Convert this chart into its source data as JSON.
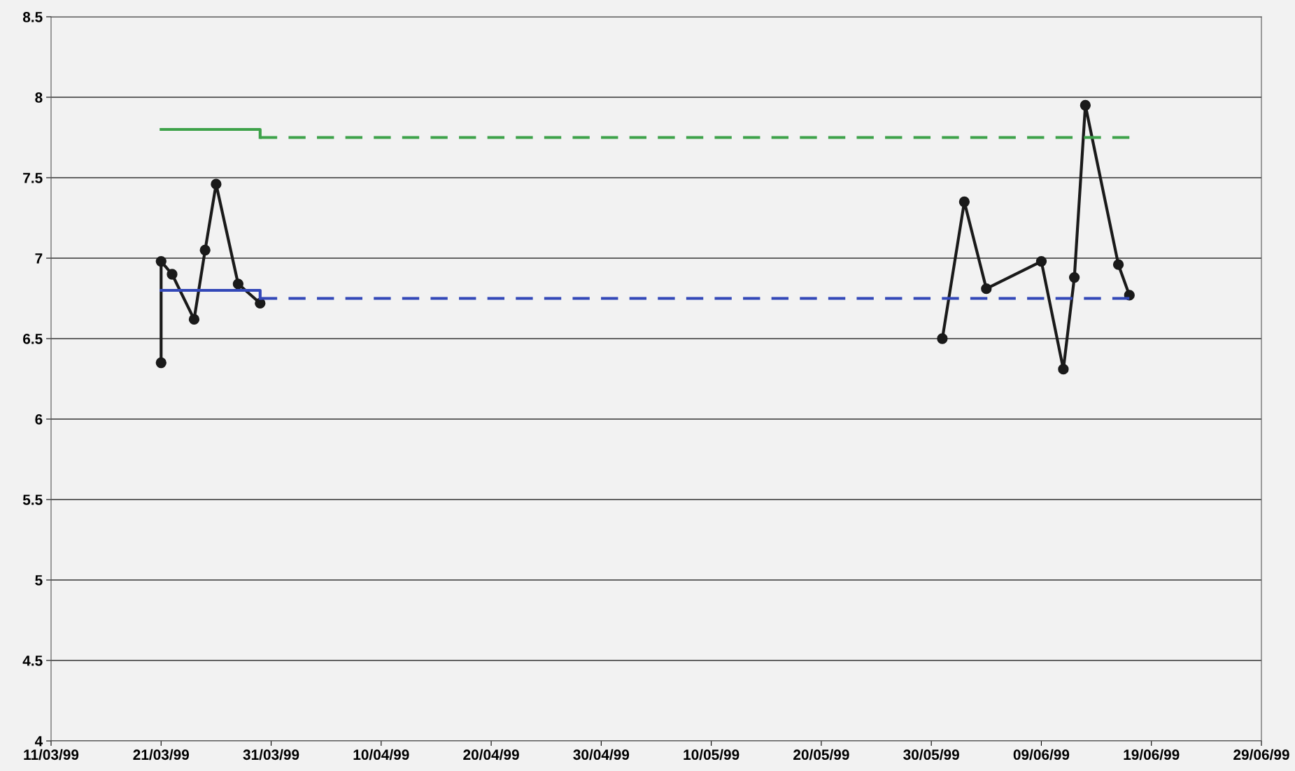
{
  "chart_data": {
    "type": "line",
    "series": [
      {
        "color": "#1a1a1a",
        "marker": "circle",
        "line_style": "solid",
        "x": [
          "1999-03-21",
          "1999-03-21",
          "1999-03-22",
          "1999-03-24",
          "1999-03-25",
          "1999-03-26",
          "1999-03-28",
          "1999-03-30"
        ],
        "values": [
          6.35,
          6.98,
          6.9,
          6.62,
          7.05,
          7.46,
          6.84,
          6.72
        ]
      },
      {
        "color": "#1a1a1a",
        "marker": "circle",
        "line_style": "solid",
        "x": [
          "1999-05-31",
          "1999-06-02",
          "1999-06-04",
          "1999-06-09",
          "1999-06-11",
          "1999-06-12",
          "1999-06-13",
          "1999-06-16",
          "1999-06-17"
        ],
        "values": [
          6.5,
          7.35,
          6.81,
          6.98,
          6.31,
          6.88,
          7.95,
          6.96,
          6.77
        ]
      },
      {
        "color": "#3ea24a",
        "marker": "none",
        "line_style": "solid",
        "x": [
          "1999-03-21",
          "1999-03-30",
          "1999-03-30"
        ],
        "values": [
          7.8,
          7.8,
          7.75
        ]
      },
      {
        "color": "#3ea24a",
        "marker": "none",
        "line_style": "dashed",
        "x": [
          "1999-03-30",
          "1999-06-17"
        ],
        "values": [
          7.75,
          7.75
        ]
      },
      {
        "color": "#3348b8",
        "marker": "none",
        "line_style": "solid",
        "x": [
          "1999-03-21",
          "1999-03-30",
          "1999-03-30"
        ],
        "values": [
          6.8,
          6.8,
          6.75
        ]
      },
      {
        "color": "#3348b8",
        "marker": "none",
        "line_style": "dashed",
        "x": [
          "1999-03-30",
          "1999-06-17"
        ],
        "values": [
          6.75,
          6.75
        ]
      }
    ],
    "xlim": [
      "1999-03-11",
      "1999-06-29"
    ],
    "xticks": [
      {
        "value": "1999-03-11",
        "label": "11/03/99"
      },
      {
        "value": "1999-03-21",
        "label": "21/03/99"
      },
      {
        "value": "1999-03-31",
        "label": "31/03/99"
      },
      {
        "value": "1999-04-10",
        "label": "10/04/99"
      },
      {
        "value": "1999-04-20",
        "label": "20/04/99"
      },
      {
        "value": "1999-04-30",
        "label": "30/04/99"
      },
      {
        "value": "1999-05-10",
        "label": "10/05/99"
      },
      {
        "value": "1999-05-20",
        "label": "20/05/99"
      },
      {
        "value": "1999-05-30",
        "label": "30/05/99"
      },
      {
        "value": "1999-06-09",
        "label": "09/06/99"
      },
      {
        "value": "1999-06-19",
        "label": "19/06/99"
      },
      {
        "value": "1999-06-29",
        "label": "29/06/99"
      }
    ],
    "ylim": [
      4,
      8.5
    ],
    "yticks": [
      4,
      4.5,
      5,
      5.5,
      6,
      6.5,
      7,
      7.5,
      8,
      8.5
    ],
    "grid": "y",
    "legend": false
  }
}
